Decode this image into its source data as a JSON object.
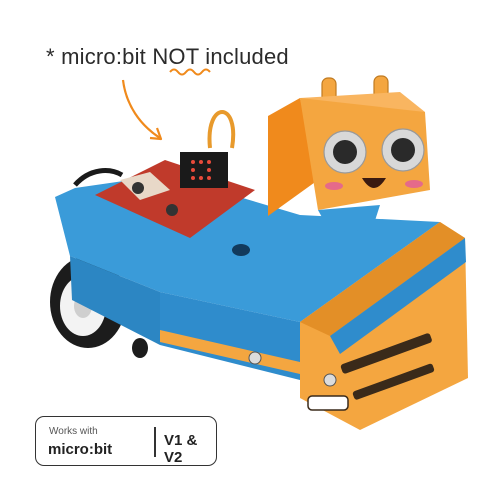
{
  "caption": {
    "prefix": "* micro:bit ",
    "emphasis": "NOT",
    "suffix": " included"
  },
  "badge": {
    "works_with": "Works with",
    "brand": "micro:bit",
    "versions": "V1 & V2"
  },
  "colors": {
    "body_blue": "#2f8ccc",
    "panel_orange": "#f4a640",
    "underline_orange": "#f08a1c",
    "wheel_black": "#1c1c1c"
  },
  "icons": [
    "arrow-icon",
    "robot-car-illustration"
  ]
}
